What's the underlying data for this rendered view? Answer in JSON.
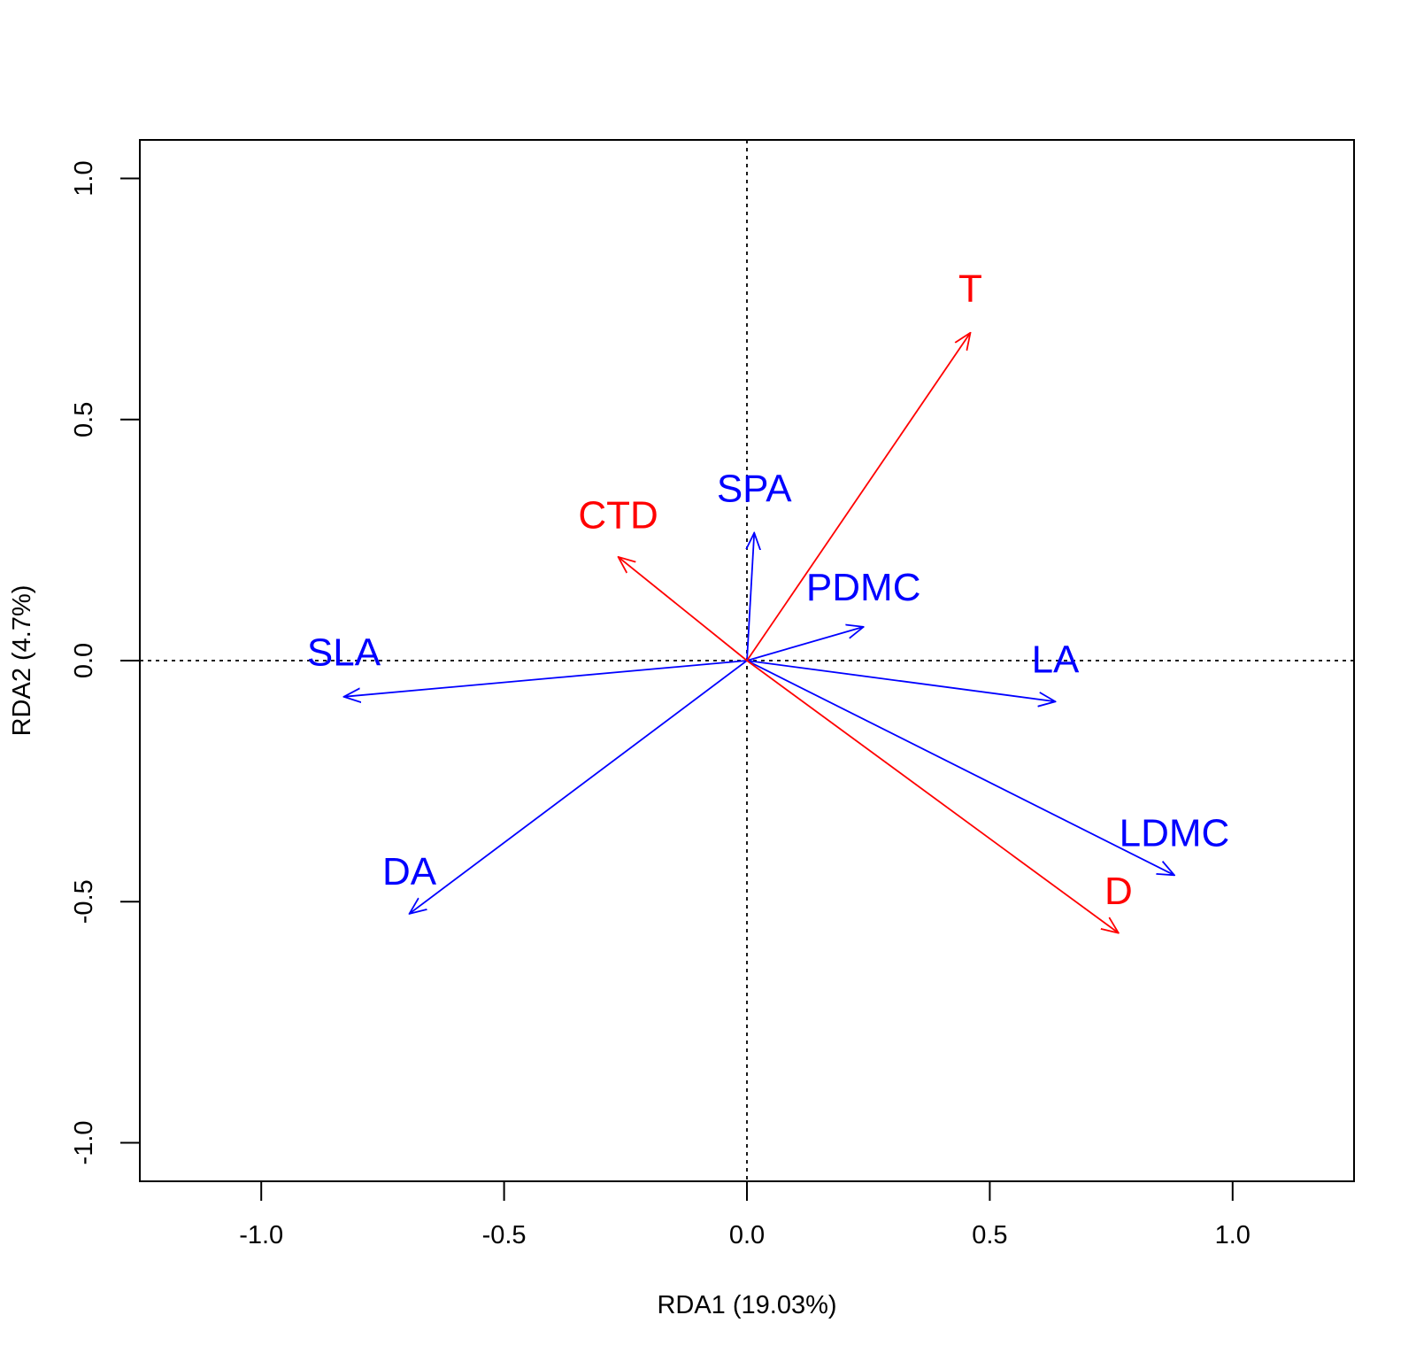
{
  "chart_data": {
    "type": "scatter",
    "subtype": "rda-biplot",
    "title": "",
    "xlabel": "RDA1 (19.03%)",
    "ylabel": "RDA2 (4.7%)",
    "xlim": [
      -1.25,
      1.25
    ],
    "ylim": [
      -1.08,
      1.08
    ],
    "xticks": [
      -1.0,
      -0.5,
      0.0,
      0.5,
      1.0
    ],
    "xtick_labels": [
      "-1.0",
      "-0.5",
      "0.0",
      "0.5",
      "1.0"
    ],
    "yticks": [
      -1.0,
      -0.5,
      0.0,
      0.5,
      1.0
    ],
    "ytick_labels": [
      "-1.0",
      "-0.5",
      "0.0",
      "0.5",
      "1.0"
    ],
    "zero_lines": true,
    "grid": false,
    "legend": "none",
    "colors": {
      "traits": "#0000ff",
      "environment": "#ff0000",
      "axes": "#000000"
    },
    "vectors": [
      {
        "name": "SLA",
        "group": "traits",
        "x": -0.83,
        "y": -0.075,
        "label_x": -0.83,
        "label_y": -0.01
      },
      {
        "name": "SPA",
        "group": "traits",
        "x": 0.015,
        "y": 0.265,
        "label_x": 0.015,
        "label_y": 0.33
      },
      {
        "name": "PDMC",
        "group": "traits",
        "x": 0.24,
        "y": 0.07,
        "label_x": 0.24,
        "label_y": 0.125
      },
      {
        "name": "LA",
        "group": "traits",
        "x": 0.635,
        "y": -0.085,
        "label_x": 0.635,
        "label_y": -0.025
      },
      {
        "name": "LDMC",
        "group": "traits",
        "x": 0.88,
        "y": -0.445,
        "label_x": 0.88,
        "label_y": -0.385
      },
      {
        "name": "DA",
        "group": "traits",
        "x": -0.695,
        "y": -0.525,
        "label_x": -0.695,
        "label_y": -0.465
      },
      {
        "name": "T",
        "group": "environment",
        "x": 0.46,
        "y": 0.68,
        "label_x": 0.46,
        "label_y": 0.745
      },
      {
        "name": "CTD",
        "group": "environment",
        "x": -0.265,
        "y": 0.215,
        "label_x": -0.265,
        "label_y": 0.275
      },
      {
        "name": "D",
        "group": "environment",
        "x": 0.765,
        "y": -0.565,
        "label_x": 0.765,
        "label_y": -0.505
      }
    ]
  }
}
